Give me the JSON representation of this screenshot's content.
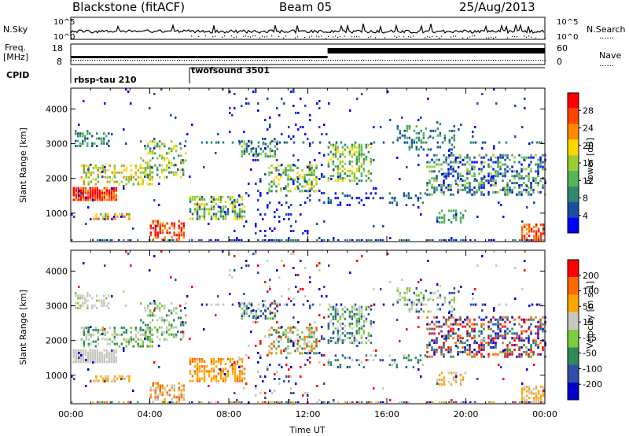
{
  "header": {
    "title": "Blackstone (fitACF)",
    "beam": "Beam 05",
    "date": "25/Aug/2013"
  },
  "labels": {
    "nsky": "N.Sky",
    "nsearch": "N.Search",
    "freq": "Freq.",
    "mhz": "[MHz]",
    "nave": "Nave",
    "cpid": "CPID",
    "dots": "......"
  },
  "cpid_programs": [
    {
      "name": "rbsp-tau 210",
      "start_h": 0.0
    },
    {
      "name": "twofsound 3501",
      "start_h": 6.0
    }
  ],
  "noise_axis": {
    "left_ticks": [
      "10^5",
      "10^0"
    ],
    "right_ticks": [
      "10^5",
      "10^0"
    ]
  },
  "freq_axis": {
    "left_ticks": [
      "18",
      "8"
    ],
    "right_ticks": [
      "60",
      "0"
    ]
  },
  "chart_data": [
    {
      "type": "heatmap",
      "panel": "power",
      "ylabel": "Slant Range [km]",
      "ylim": [
        180,
        4600
      ],
      "yticks": [
        1000,
        2000,
        3000,
        4000
      ],
      "xlim": [
        0,
        24
      ],
      "colorbar": {
        "label": "Power [dB]",
        "ticks": [
          "28",
          "24",
          "20",
          "16",
          "12",
          "8",
          "4"
        ]
      }
    },
    {
      "type": "heatmap",
      "panel": "velocity",
      "ylabel": "Slant Range [km]",
      "ylim": [
        180,
        4600
      ],
      "yticks": [
        1000,
        2000,
        3000,
        4000
      ],
      "xlim": [
        0,
        24
      ],
      "xlabel": "Time UT",
      "xticks": [
        "00:00",
        "04:00",
        "08:00",
        "12:00",
        "16:00",
        "20:00",
        "00:00"
      ],
      "colorbar": {
        "label": "Velocity [m s-1]",
        "ticks": [
          "200",
          "100",
          "50",
          "15",
          "-15",
          "-50",
          "-100",
          "-200"
        ]
      }
    }
  ],
  "colors": {
    "power_scale": [
      "#0000ff",
      "#1a4fa0",
      "#2e8a6a",
      "#55b55a",
      "#9acd32",
      "#ffd700",
      "#ff8c00",
      "#ff4500",
      "#ff0000"
    ],
    "velocity_scale": [
      "#0000cd",
      "#2f4fa8",
      "#2e8b57",
      "#7ccd3a",
      "#c8c8c0",
      "#ffa500",
      "#ff6a00",
      "#ff0000"
    ]
  }
}
